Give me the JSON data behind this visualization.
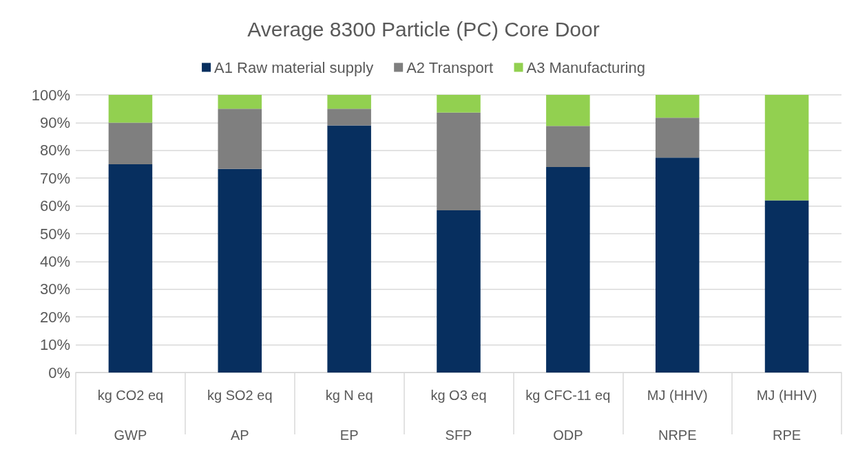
{
  "chart_data": {
    "type": "bar",
    "title": "Average 8300 Particle (PC) Core Door",
    "stacked": true,
    "categories": [
      "kg CO2 eq\nGWP",
      "kg SO2 eq\nAP",
      "kg N eq\nEP",
      "kg O3 eq\nSFP",
      "kg CFC-11 eq\nODP",
      "MJ (HHV)\nNRPE",
      "MJ (HHV)\nRPE"
    ],
    "series": [
      {
        "name": "A1 Raw material supply",
        "color": "#072f5f",
        "values": [
          75,
          73.3,
          89,
          58.4,
          74,
          77.4,
          62
        ]
      },
      {
        "name": "A2 Transport",
        "color": "#7f7f7f",
        "values": [
          15,
          21.7,
          6,
          35.2,
          14.8,
          14.4,
          0
        ]
      },
      {
        "name": "A3 Manufacturing",
        "color": "#92d050",
        "values": [
          10,
          5,
          5,
          6.4,
          11.2,
          8.2,
          38
        ]
      }
    ],
    "ylim": [
      0,
      100
    ],
    "yticks": [
      {
        "value": 0,
        "label": "0%"
      },
      {
        "value": 10,
        "label": "10%"
      },
      {
        "value": 20,
        "label": "20%"
      },
      {
        "value": 30,
        "label": "30%"
      },
      {
        "value": 40,
        "label": "40%"
      },
      {
        "value": 50,
        "label": "50%"
      },
      {
        "value": 60,
        "label": "60%"
      },
      {
        "value": 70,
        "label": "70%"
      },
      {
        "value": 80,
        "label": "80%"
      },
      {
        "value": 90,
        "label": "90%"
      },
      {
        "value": 100,
        "label": "100%"
      }
    ],
    "grid": "y",
    "legend": "top"
  }
}
